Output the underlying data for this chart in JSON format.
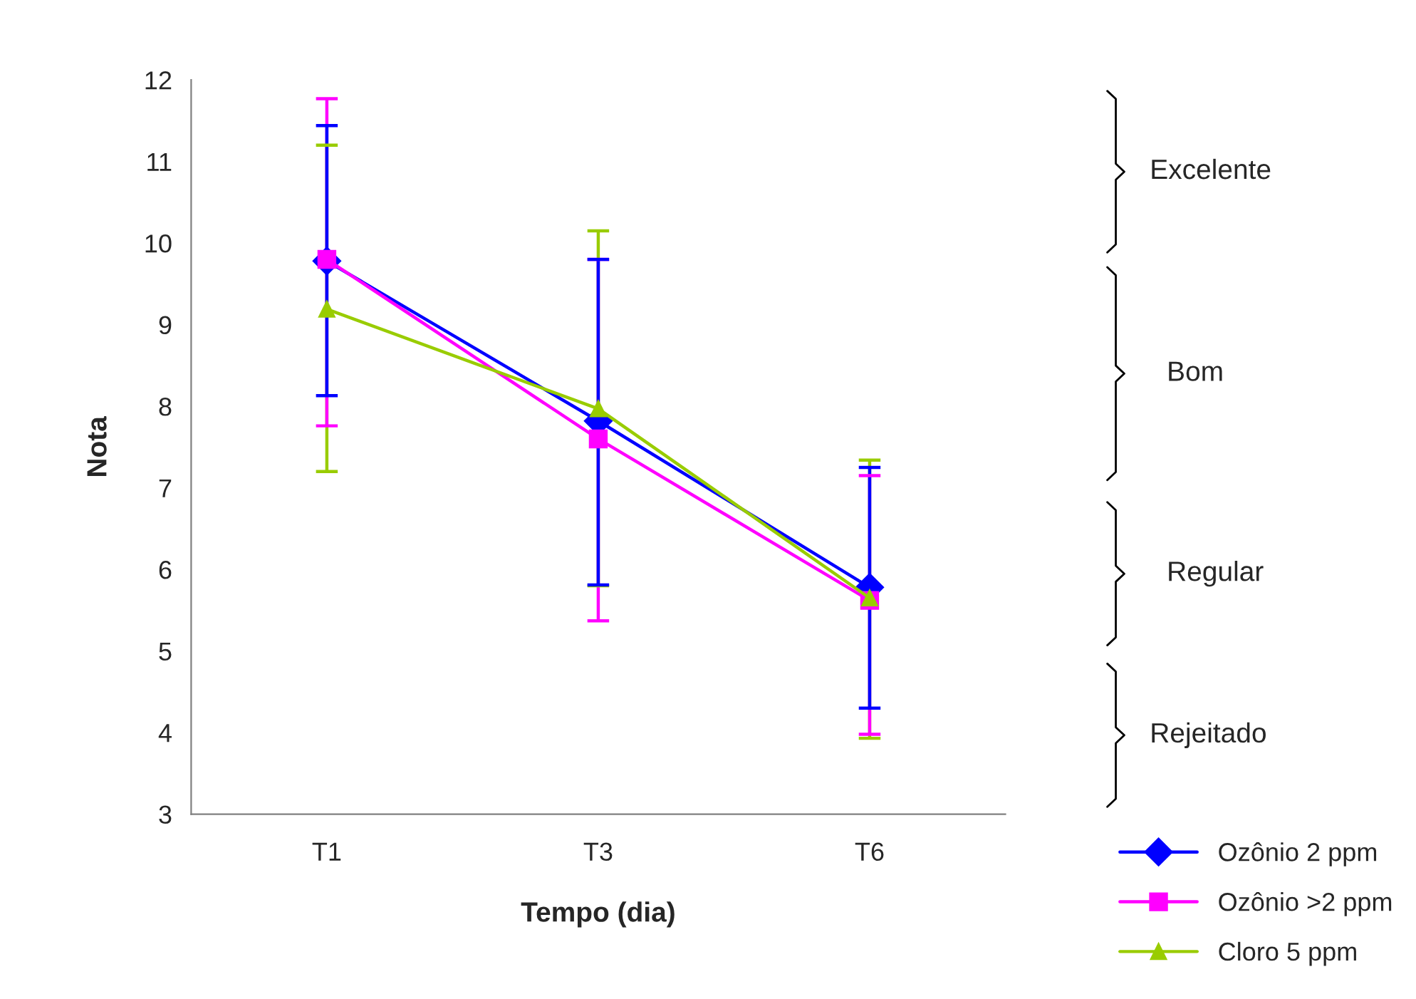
{
  "chart_data": {
    "type": "line",
    "xlabel": "Tempo (dia)",
    "ylabel": "Nota",
    "categories": [
      "T1",
      "T3",
      "T6"
    ],
    "series": [
      {
        "name": "Ozônio 2 ppm",
        "color": "#0000ff",
        "marker": "diamond",
        "values": [
          9.78,
          7.82,
          5.78
        ],
        "errors": [
          [
            8.13,
            11.44
          ],
          [
            5.81,
            9.8
          ],
          [
            4.3,
            7.25
          ]
        ]
      },
      {
        "name": "Ozônio >2 ppm",
        "color": "#ff00ff",
        "marker": "square",
        "values": [
          9.8,
          7.6,
          5.62
        ],
        "errors": [
          [
            7.76,
            11.77
          ],
          [
            5.37,
            9.8
          ],
          [
            3.98,
            7.15
          ]
        ]
      },
      {
        "name": "Cloro 5 ppm",
        "color": "#99cc00",
        "marker": "triangle",
        "values": [
          9.19,
          7.97,
          5.65
        ],
        "errors": [
          [
            7.2,
            11.2
          ],
          [
            5.8,
            10.15
          ],
          [
            3.93,
            7.34
          ]
        ]
      }
    ],
    "ylim": [
      3,
      12
    ],
    "yticks": [
      3,
      4,
      5,
      6,
      7,
      8,
      9,
      10,
      11,
      12
    ],
    "grid": false,
    "legend": "bottom right",
    "line_style": "solid",
    "annotations": [
      "Excelente",
      "Bom",
      "Regular",
      "Rejeitado"
    ]
  }
}
